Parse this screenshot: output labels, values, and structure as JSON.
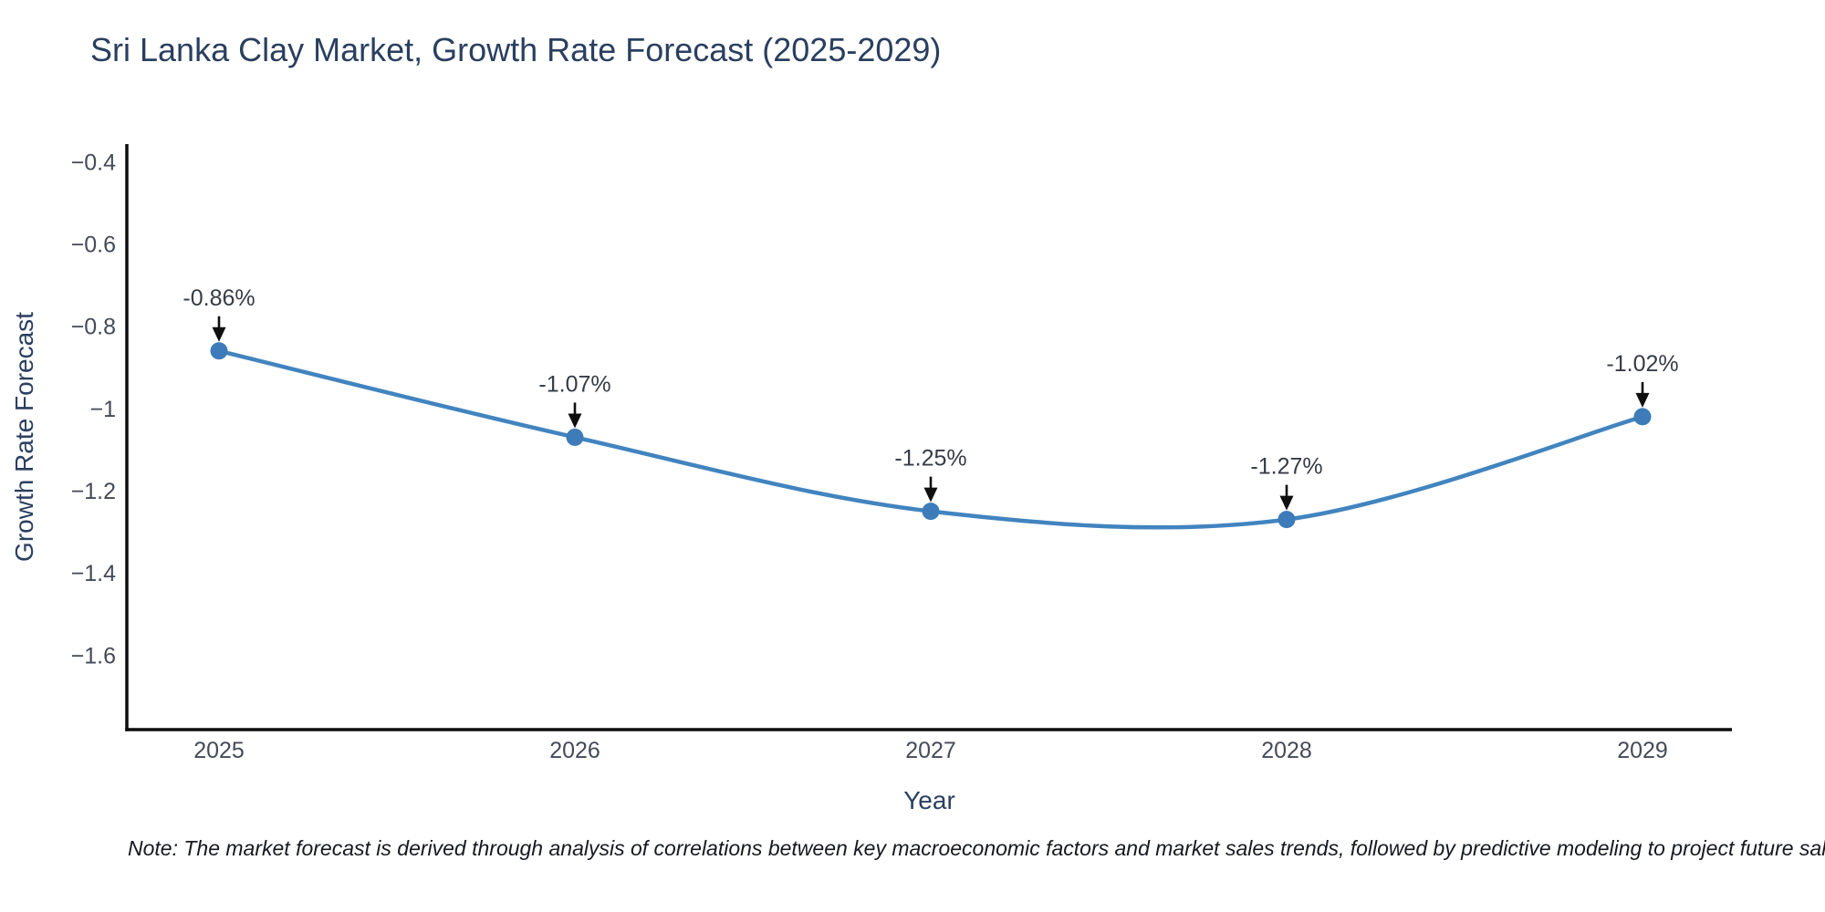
{
  "title": "Sri Lanka Clay Market, Growth Rate Forecast (2025-2029)",
  "footnote": "Note: The market forecast is derived through analysis of correlations between key macroeconomic factors and market sales trends, followed by predictive modeling to project future sales.",
  "colors": {
    "title": "#2a3f5f",
    "axis_title": "#2a3f5f",
    "tick_label": "#444b57",
    "annotation_text": "#363c46",
    "axis_line": "#0d0d0d",
    "line": "#4184bf",
    "marker": "#3d7cb8",
    "arrow": "#0f0f0f",
    "background": "#ffffff"
  },
  "chart_data": {
    "type": "line",
    "title": "Sri Lanka Clay Market, Growth Rate Forecast (2025-2029)",
    "xlabel": "Year",
    "ylabel": "Growth Rate Forecast",
    "categories": [
      "2025",
      "2026",
      "2027",
      "2028",
      "2029"
    ],
    "values": [
      -0.86,
      -1.07,
      -1.25,
      -1.27,
      -1.02
    ],
    "point_labels": [
      "-0.86%",
      "-1.07%",
      "-1.25%",
      "-1.27%",
      "-1.02%"
    ],
    "series_name": "Growth Rate Forecast",
    "y_ticks": [
      -0.4,
      -0.6,
      -0.8,
      -1,
      -1.2,
      -1.4,
      -1.6
    ],
    "y_tick_labels": [
      "−0.4",
      "−0.6",
      "−0.8",
      "−1",
      "−1.2",
      "−1.4",
      "−1.6"
    ],
    "ylim": [
      -1.781,
      -0.357
    ],
    "line_shape": "spline",
    "grid": false,
    "legend_position": "none",
    "annotations": "value labels with down arrows above each point"
  }
}
